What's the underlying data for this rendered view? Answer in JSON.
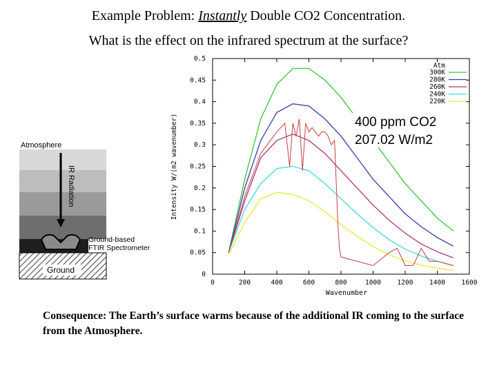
{
  "title": {
    "prefix": "Example Problem:",
    "emphasis": "Instantly",
    "suffix": "Double CO2 Concentration.",
    "line2": "What is the effect on the infrared spectrum at the surface?"
  },
  "diagram": {
    "atmosphere_label": "Atmosphere",
    "ir_label": "IR Radiation",
    "spectrometer_label_1": "Ground-based",
    "spectrometer_label_2": "FTIR Spectrometer",
    "ground_label": "Ground",
    "colors": {
      "layer1": "#d8d8d8",
      "layer2": "#bdbdbd",
      "layer3": "#9a9a9a",
      "layer4": "#6e6e6e",
      "layer5": "#3c3c3c"
    }
  },
  "annotation": {
    "line1": "400 ppm CO2",
    "line2": "207.02 W/m2"
  },
  "consequence": "Consequence:  The Earth’s surface warms because of the additional IR coming to the surface from the Atmosphere.",
  "chart_data": {
    "type": "line",
    "title": "",
    "xlabel": "Wavenumber",
    "ylabel": "Intensity W/(m2 wavenumber)",
    "xlim": [
      0,
      1600
    ],
    "ylim": [
      0,
      0.5
    ],
    "x_ticks": [
      "0",
      "200",
      "400",
      "600",
      "800",
      "1000",
      "1200",
      "1400",
      "1600"
    ],
    "y_ticks": [
      "0",
      "0.05",
      "0.1",
      "0.15",
      "0.2",
      "0.25",
      "0.3",
      "0.35",
      "0.4",
      "0.45",
      "0.5"
    ],
    "grid": false,
    "legend_title": "Atm",
    "legend_position": "top-right",
    "series": [
      {
        "name": "300K",
        "color": "#3cc23c",
        "x": [
          100,
          200,
          300,
          400,
          500,
          600,
          700,
          800,
          900,
          1000,
          1100,
          1200,
          1300,
          1400,
          1500
        ],
        "values": [
          0.05,
          0.22,
          0.36,
          0.44,
          0.477,
          0.477,
          0.45,
          0.41,
          0.36,
          0.31,
          0.26,
          0.21,
          0.17,
          0.13,
          0.1
        ]
      },
      {
        "name": "280K",
        "color": "#3a3aa8",
        "x": [
          100,
          200,
          300,
          400,
          500,
          600,
          700,
          800,
          900,
          1000,
          1100,
          1200,
          1300,
          1400,
          1500
        ],
        "values": [
          0.05,
          0.2,
          0.31,
          0.375,
          0.395,
          0.39,
          0.36,
          0.32,
          0.27,
          0.22,
          0.18,
          0.14,
          0.11,
          0.085,
          0.065
        ]
      },
      {
        "name": "260K",
        "color": "#b3336b",
        "x": [
          100,
          200,
          300,
          400,
          500,
          600,
          700,
          800,
          900,
          1000,
          1100,
          1200,
          1300,
          1400,
          1500
        ],
        "values": [
          0.05,
          0.17,
          0.27,
          0.31,
          0.325,
          0.31,
          0.28,
          0.24,
          0.2,
          0.16,
          0.125,
          0.095,
          0.07,
          0.052,
          0.038
        ]
      },
      {
        "name": "240K",
        "color": "#40d8e0",
        "x": [
          100,
          200,
          300,
          400,
          500,
          600,
          700,
          800,
          900,
          1000,
          1100,
          1200,
          1300,
          1400,
          1500
        ],
        "values": [
          0.05,
          0.15,
          0.21,
          0.245,
          0.25,
          0.24,
          0.21,
          0.175,
          0.14,
          0.108,
          0.08,
          0.058,
          0.042,
          0.03,
          0.02
        ]
      },
      {
        "name": "220K",
        "color": "#e8e83a",
        "x": [
          100,
          200,
          300,
          400,
          500,
          600,
          700,
          800,
          900,
          1000,
          1100,
          1200,
          1300,
          1400,
          1500
        ],
        "values": [
          0.045,
          0.12,
          0.175,
          0.19,
          0.185,
          0.17,
          0.145,
          0.115,
          0.088,
          0.064,
          0.045,
          0.031,
          0.021,
          0.014,
          0.009
        ]
      },
      {
        "name": "",
        "color": "#c04040",
        "x": [
          100,
          200,
          300,
          400,
          450,
          480,
          500,
          520,
          540,
          560,
          580,
          600,
          620,
          640,
          660,
          680,
          700,
          720,
          740,
          760,
          780,
          790,
          800,
          850,
          900,
          950,
          1000,
          1050,
          1100,
          1150,
          1200,
          1250,
          1300,
          1350,
          1400,
          1450,
          1500
        ],
        "values": [
          0.05,
          0.18,
          0.28,
          0.33,
          0.35,
          0.25,
          0.35,
          0.32,
          0.36,
          0.24,
          0.35,
          0.33,
          0.34,
          0.33,
          0.32,
          0.33,
          0.33,
          0.32,
          0.3,
          0.31,
          0.12,
          0.06,
          0.04,
          0.035,
          0.03,
          0.025,
          0.02,
          0.035,
          0.05,
          0.06,
          0.02,
          0.02,
          0.06,
          0.03,
          0.03,
          0.025,
          0.02
        ]
      }
    ]
  }
}
